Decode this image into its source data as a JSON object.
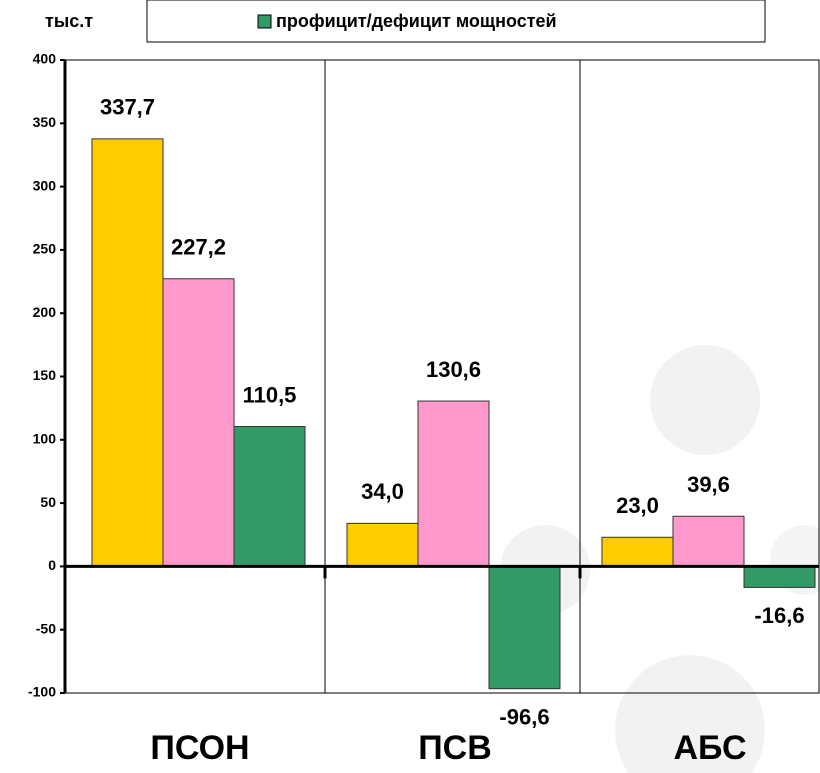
{
  "chart_data": {
    "type": "bar",
    "unit_label": "тыс.т",
    "categories": [
      "ПСОН",
      "ПСВ",
      "АБС"
    ],
    "series": [
      {
        "color": "#ffcc00",
        "values": [
          337.7,
          34.0,
          23.0
        ],
        "value_labels": [
          "337,7",
          "34,0",
          "23,0"
        ]
      },
      {
        "color": "#ff99cc",
        "values": [
          227.2,
          130.6,
          39.6
        ],
        "value_labels": [
          "227,2",
          "130,6",
          "39,6"
        ]
      },
      {
        "name": "профицит/дефицит мощностей",
        "color": "#339966",
        "values": [
          110.5,
          -96.6,
          -16.6
        ],
        "value_labels": [
          "110,5",
          "-96,6",
          "-16,6"
        ]
      }
    ],
    "ylim": [
      -100,
      400
    ],
    "yticks": [
      -100,
      -50,
      0,
      50,
      100,
      150,
      200,
      250,
      300,
      350,
      400
    ],
    "grid": false
  }
}
